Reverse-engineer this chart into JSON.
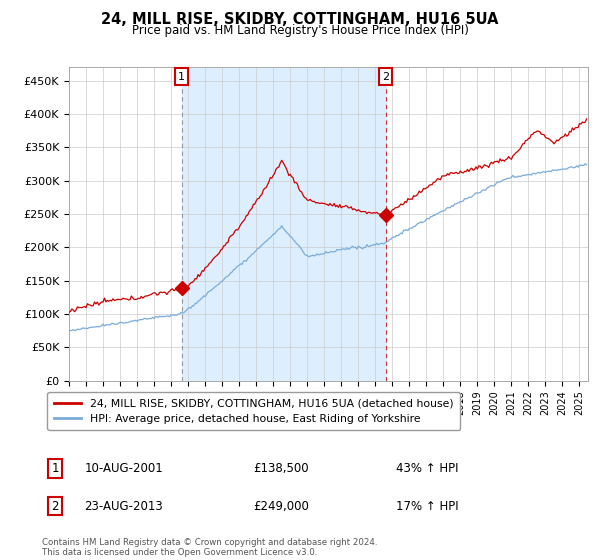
{
  "title": "24, MILL RISE, SKIDBY, COTTINGHAM, HU16 5UA",
  "subtitle": "Price paid vs. HM Land Registry's House Price Index (HPI)",
  "ylabel_ticks": [
    "£0",
    "£50K",
    "£100K",
    "£150K",
    "£200K",
    "£250K",
    "£300K",
    "£350K",
    "£400K",
    "£450K"
  ],
  "ylim": [
    0,
    470000
  ],
  "yticks": [
    0,
    50000,
    100000,
    150000,
    200000,
    250000,
    300000,
    350000,
    400000,
    450000
  ],
  "transaction1_year": 2001.614,
  "transaction1_price": 138500,
  "transaction1_date": "10-AUG-2001",
  "transaction1_pct": "£138,500",
  "transaction1_label": "43% ↑ HPI",
  "transaction2_year": 2013.614,
  "transaction2_price": 249000,
  "transaction2_date": "23-AUG-2013",
  "transaction2_pct": "£249,000",
  "transaction2_label": "17% ↑ HPI",
  "line_color_red": "#cc0000",
  "line_color_blue": "#7aadda",
  "legend_label_red": "24, MILL RISE, SKIDBY, COTTINGHAM, HU16 5UA (detached house)",
  "legend_label_blue": "HPI: Average price, detached house, East Riding of Yorkshire",
  "footer": "Contains HM Land Registry data © Crown copyright and database right 2024.\nThis data is licensed under the Open Government Licence v3.0.",
  "background_color": "#ffffff",
  "grid_color": "#cccccc",
  "annotation_box_color": "#cc0000",
  "shade_color": "#ddeeff",
  "xlim_left": 1995.0,
  "xlim_right": 2025.5
}
